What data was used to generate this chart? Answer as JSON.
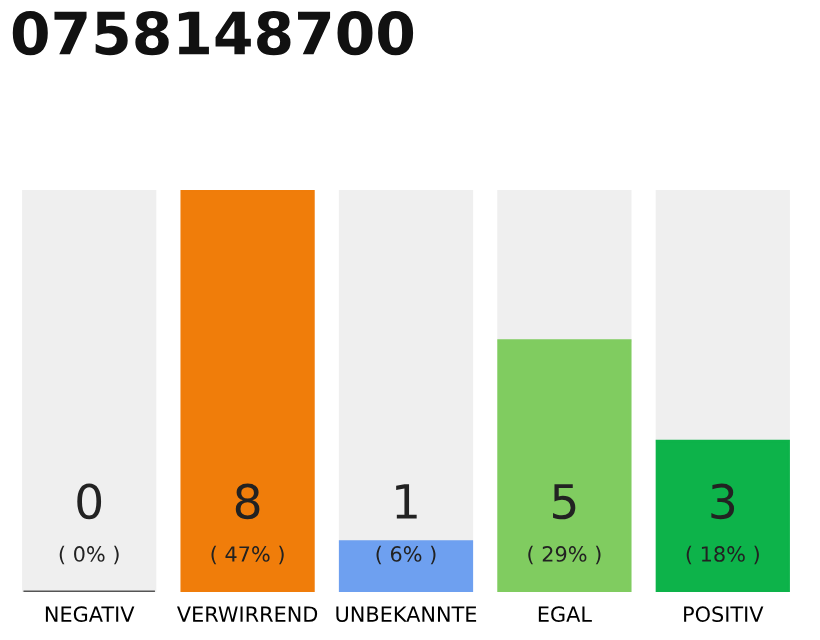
{
  "chart_data": {
    "type": "bar",
    "title": "0758148700",
    "categories": [
      "NEGATIV",
      "VERWIRREND",
      "UNBEKANNTE",
      "EGAL",
      "POSITIV"
    ],
    "stacked": true,
    "series": [
      {
        "colors": [
          "#555555",
          "#f07d0a",
          "#6ea0f0",
          "#80cc60",
          "#0db34a"
        ],
        "values": [
          0,
          8,
          1,
          5,
          3
        ],
        "value_labels": [
          "0",
          "8",
          "1",
          "5",
          "3"
        ]
      },
      {
        "color": "#efefef",
        "values": [
          8,
          0,
          7,
          3,
          5
        ]
      }
    ],
    "annotations": [
      "( 0% )",
      "( 47% )",
      "( 6% )",
      "( 29% )",
      "( 18% )"
    ],
    "tick_labels": "x"
  }
}
